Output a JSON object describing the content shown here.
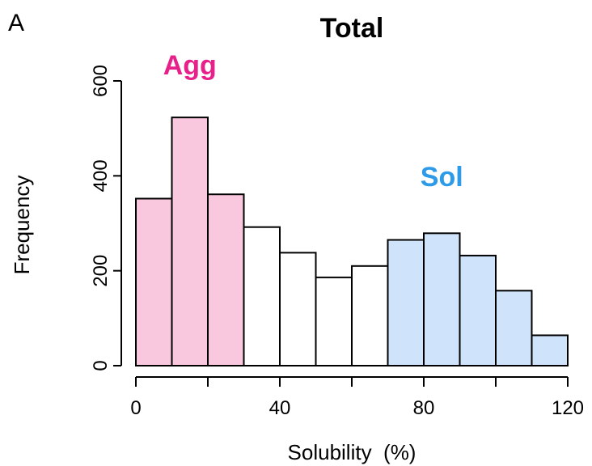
{
  "panel_label": "A",
  "chart_data": {
    "type": "bar",
    "title": "Total",
    "xlabel": "Solubility  (%)",
    "ylabel": "Frequency",
    "bins": [
      {
        "x0": 0,
        "x1": 10,
        "value": 352,
        "group": "agg"
      },
      {
        "x0": 10,
        "x1": 20,
        "value": 523,
        "group": "agg"
      },
      {
        "x0": 20,
        "x1": 30,
        "value": 361,
        "group": "agg"
      },
      {
        "x0": 30,
        "x1": 40,
        "value": 292,
        "group": "mid"
      },
      {
        "x0": 40,
        "x1": 50,
        "value": 238,
        "group": "mid"
      },
      {
        "x0": 50,
        "x1": 60,
        "value": 186,
        "group": "mid"
      },
      {
        "x0": 60,
        "x1": 70,
        "value": 210,
        "group": "mid"
      },
      {
        "x0": 70,
        "x1": 80,
        "value": 265,
        "group": "sol"
      },
      {
        "x0": 80,
        "x1": 90,
        "value": 279,
        "group": "sol"
      },
      {
        "x0": 90,
        "x1": 100,
        "value": 232,
        "group": "sol"
      },
      {
        "x0": 100,
        "x1": 110,
        "value": 158,
        "group": "sol"
      },
      {
        "x0": 110,
        "x1": 120,
        "value": 64,
        "group": "sol"
      }
    ],
    "xlim": [
      0,
      120
    ],
    "ylim": [
      0,
      600
    ],
    "xticks_labeled": [
      0,
      40,
      80,
      120
    ],
    "xticks_minor": [
      20,
      60,
      100
    ],
    "yticks": [
      0,
      200,
      400,
      600
    ],
    "annotations": [
      {
        "text": "Agg",
        "color": "#e8208a",
        "x": 15,
        "y": 600
      },
      {
        "text": "Sol",
        "color": "#2d9be8",
        "x": 85,
        "y": 365
      }
    ],
    "colors": {
      "agg": "#f9c7de",
      "mid": "#ffffff",
      "sol": "#cfe4fa",
      "edge": "#000000"
    },
    "grid": false
  }
}
